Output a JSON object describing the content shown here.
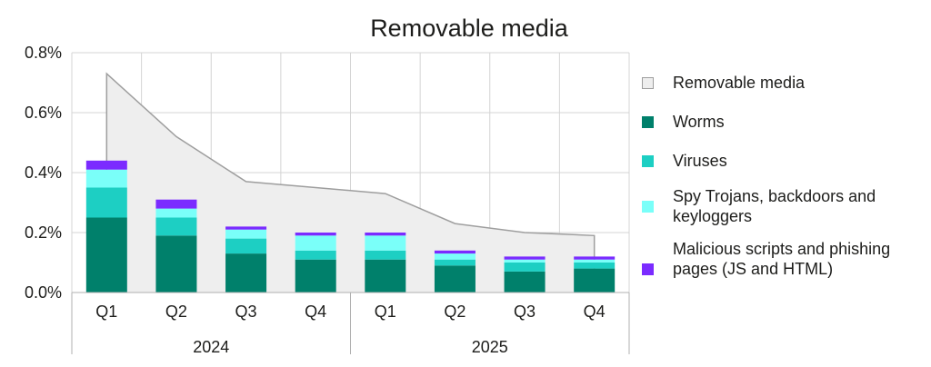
{
  "chart_data": {
    "type": "bar",
    "title": "Removable media",
    "y_ticks": [
      "0.0%",
      "0.2%",
      "0.4%",
      "0.6%",
      "0.8%"
    ],
    "ylim": [
      0,
      0.8
    ],
    "y_unit": "%",
    "grid": true,
    "legend_position": "right",
    "categories": [
      "Q1",
      "Q2",
      "Q3",
      "Q4",
      "Q1",
      "Q2",
      "Q3",
      "Q4"
    ],
    "groups": [
      {
        "label": "2024",
        "categories": [
          "Q1",
          "Q2",
          "Q3",
          "Q4"
        ]
      },
      {
        "label": "2025",
        "categories": [
          "Q1",
          "Q2",
          "Q3",
          "Q4"
        ]
      }
    ],
    "area": {
      "name": "Removable media",
      "type": "area",
      "values": [
        0.73,
        0.52,
        0.37,
        0.35,
        0.33,
        0.23,
        0.2,
        0.19
      ]
    },
    "series": [
      {
        "name": "Worms",
        "values": [
          0.25,
          0.19,
          0.13,
          0.11,
          0.11,
          0.09,
          0.07,
          0.08
        ]
      },
      {
        "name": "Viruses",
        "values": [
          0.1,
          0.06,
          0.05,
          0.03,
          0.03,
          0.02,
          0.03,
          0.02
        ]
      },
      {
        "name": "Spy Trojans, backdoors and keyloggers",
        "values": [
          0.06,
          0.03,
          0.03,
          0.05,
          0.05,
          0.02,
          0.01,
          0.01
        ]
      },
      {
        "name": "Malicious scripts and phishing pages (JS and HTML)",
        "values": [
          0.03,
          0.03,
          0.01,
          0.01,
          0.01,
          0.01,
          0.01,
          0.01
        ]
      }
    ]
  },
  "colors": {
    "area_fill": "#eeeeee",
    "area_stroke": "#9e9e9e",
    "Worms": "#00806b",
    "Viruses": "#1dcfc3",
    "Spy Trojans, backdoors and keyloggers": "#7afff9",
    "Malicious scripts and phishing pages (JS and HTML)": "#7b2bff",
    "grid": "#d4d4d4",
    "axis": "#b0b0b0"
  }
}
